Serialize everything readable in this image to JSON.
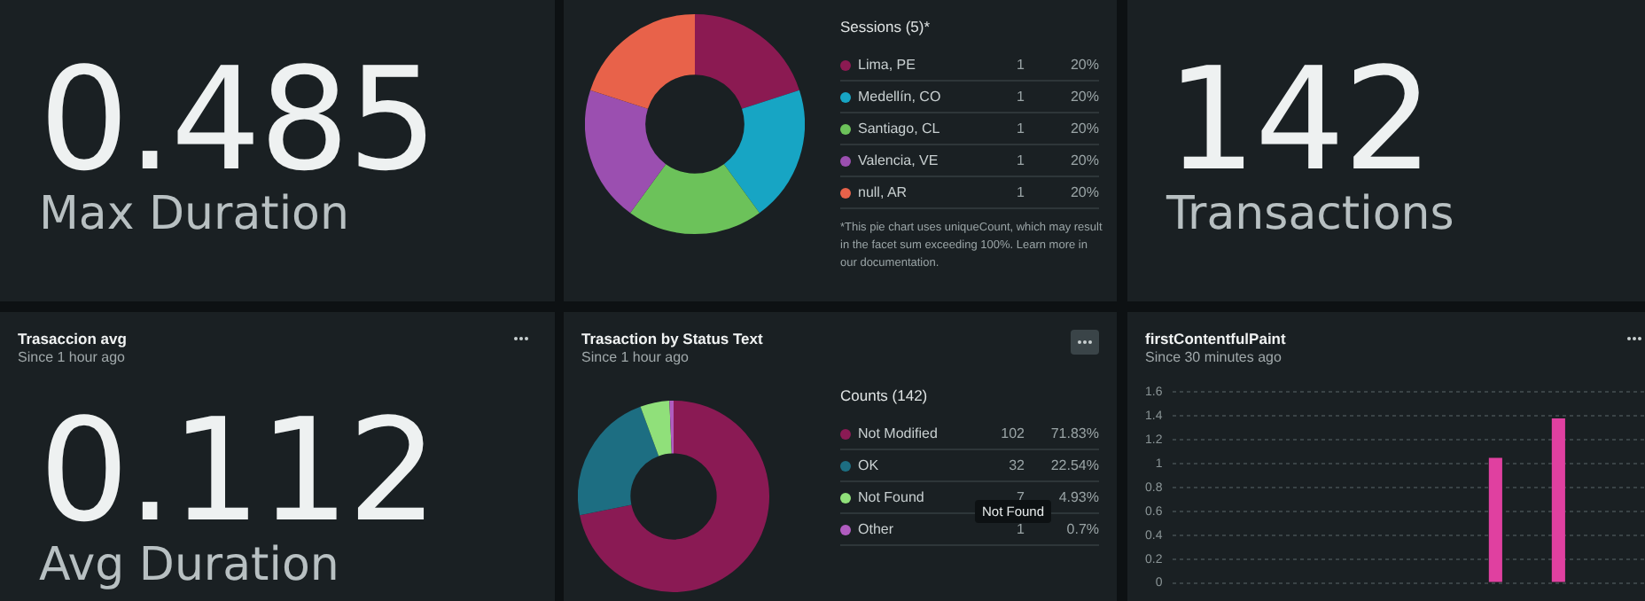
{
  "chart_data": [
    {
      "type": "other",
      "annotations": [
        "0.485",
        "Max Duration"
      ]
    },
    {
      "type": "donut",
      "legend_title": "Sessions (5)*",
      "legend": "right",
      "categories": [
        "Lima, PE",
        "Medellín, CO",
        "Santiago, CL",
        "Valencia, VE",
        "null, AR"
      ],
      "values": [
        20,
        20,
        20,
        20,
        20
      ],
      "value_labels": [
        "20%",
        "20%",
        "20%",
        "20%",
        "20%"
      ],
      "colors": [
        "#8b1a52",
        "#17a5c4",
        "#6cc25a",
        "#9b4fb0",
        "#e8624a"
      ],
      "annotations": [
        {
          "text": "1",
          "x": "Lima, PE"
        },
        {
          "text": "1",
          "x": "Medellín, CO"
        },
        {
          "text": "1",
          "x": "Santiago, CL"
        },
        {
          "text": "1",
          "x": "Valencia, VE"
        },
        {
          "text": "1",
          "x": "null, AR"
        },
        "*This pie chart uses uniqueCount, which may result in the facet sum exceeding 100%. Learn more in our documentation."
      ]
    },
    {
      "type": "other",
      "annotations": [
        "142",
        "Transactions"
      ]
    },
    {
      "type": "other",
      "title": "Trasaccion avg",
      "subtitle": "Since 1 hour ago",
      "annotations": [
        "0.112",
        "Avg Duration"
      ]
    },
    {
      "type": "donut",
      "title": "Trasaction by Status Text",
      "subtitle": "Since 1 hour ago",
      "legend_title": "Counts (142)",
      "legend": "right",
      "categories": [
        "Not Modified",
        "OK",
        "Not Found",
        "Other"
      ],
      "values": [
        71.83,
        22.54,
        4.93,
        0.7
      ],
      "value_labels": [
        "71.83%",
        "22.54%",
        "4.93%",
        "0.7%"
      ],
      "colors": [
        "#8a1a54",
        "#1d6e82",
        "#90e07a",
        "#b05cc0"
      ],
      "annotations": [
        {
          "text": "102",
          "x": "Not Modified"
        },
        {
          "text": "32",
          "x": "OK"
        },
        {
          "text": "7",
          "x": "Not Found"
        },
        {
          "text": "1",
          "x": "Other"
        },
        "Not Found"
      ]
    },
    {
      "type": "bar",
      "title": "firstContentfulPaint",
      "subtitle": "Since 30 minutes ago",
      "categories": [
        null,
        null,
        null,
        null,
        null,
        null,
        null,
        null,
        null,
        null,
        null,
        null,
        null,
        null,
        null,
        null,
        null,
        null,
        null,
        null,
        null,
        null,
        null,
        null,
        null,
        null,
        null,
        null,
        null,
        null
      ],
      "values": [
        null,
        null,
        null,
        null,
        null,
        null,
        null,
        null,
        null,
        null,
        null,
        null,
        null,
        null,
        null,
        null,
        null,
        null,
        null,
        null,
        1.05,
        null,
        null,
        null,
        1.38,
        null,
        null,
        null,
        null,
        null
      ],
      "color": "#e040a0",
      "ylim": [
        0,
        1.6
      ],
      "yticks": [
        0,
        0.2,
        0.4,
        0.6,
        0.8,
        1,
        1.2,
        1.4,
        1.6
      ],
      "grid": "y",
      "tick_labels": "y"
    }
  ]
}
